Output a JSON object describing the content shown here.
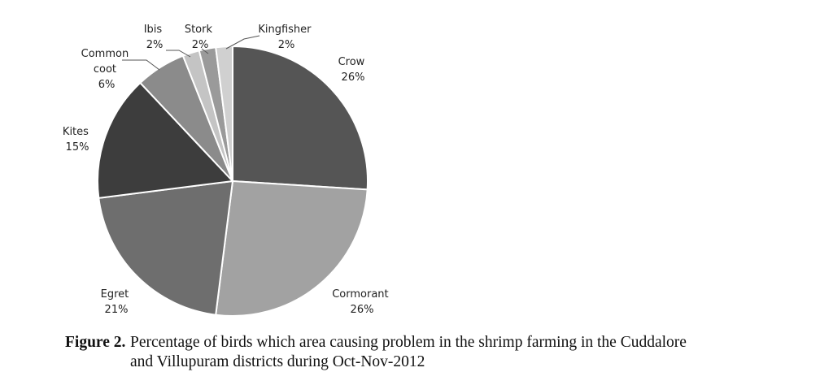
{
  "chart_data": {
    "type": "pie",
    "start_angle_deg": 0,
    "direction": "clockwise",
    "slices": [
      {
        "label": "Crow",
        "value": 26,
        "value_label": "26%",
        "color": "#555555"
      },
      {
        "label": "Cormorant",
        "value": 26,
        "value_label": "26%",
        "color": "#a2a2a2"
      },
      {
        "label": "Egret",
        "value": 21,
        "value_label": "21%",
        "color": "#6e6e6e"
      },
      {
        "label": "Kites",
        "value": 15,
        "value_label": "15%",
        "color": "#3d3d3d"
      },
      {
        "label": "Common coot",
        "value": 6,
        "value_label": "6%",
        "color": "#8b8b8b"
      },
      {
        "label": "Ibis",
        "value": 2,
        "value_label": "2%",
        "color": "#c4c4c4"
      },
      {
        "label": "Stork",
        "value": 2,
        "value_label": "2%",
        "color": "#9a9a9a"
      },
      {
        "label": "Kingfisher",
        "value": 2,
        "value_label": "2%",
        "color": "#d0d0d0"
      }
    ],
    "legend": "none"
  },
  "caption": {
    "number": "Figure 2.",
    "text_line1": "Percentage of birds which area causing problem in the shrimp farming in the Cuddalore",
    "text_line2": "and Villupuram districts during Oct-Nov-2012"
  }
}
